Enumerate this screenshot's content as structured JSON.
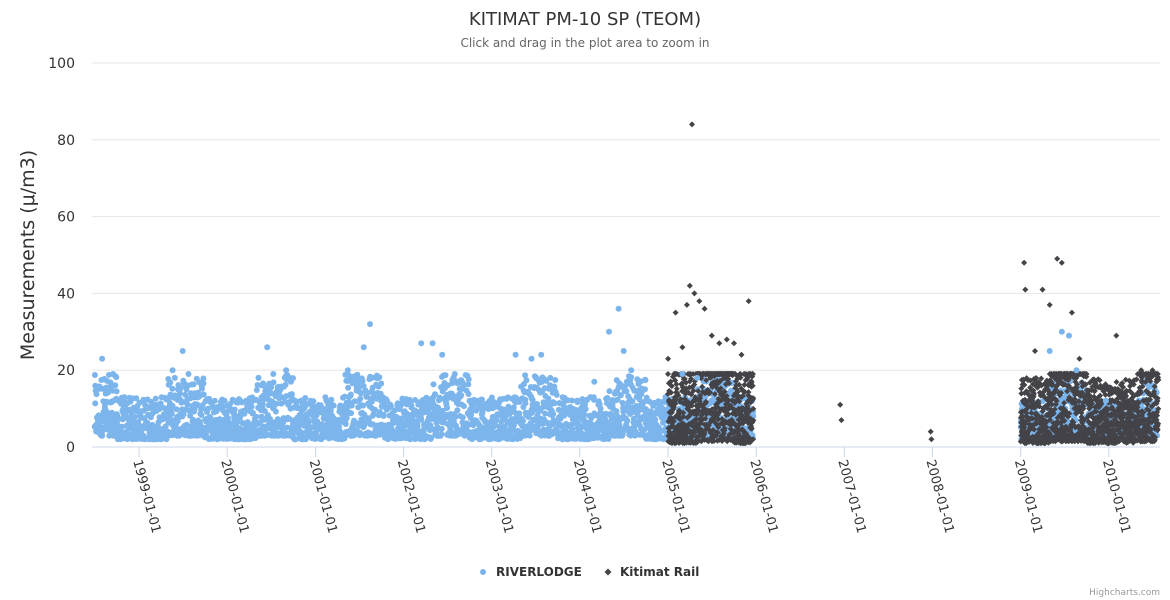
{
  "chart_data": {
    "type": "scatter",
    "title": "KITIMAT PM-10 SP (TEOM)",
    "subtitle": "Click and drag in the plot area to zoom in",
    "ylabel": "Measurements (μ/m3)",
    "xlabel": "",
    "ylim": [
      0,
      100
    ],
    "yticks": [
      "0",
      "20",
      "40",
      "60",
      "80",
      "100"
    ],
    "xlim": [
      "1998-06-20",
      "2010-08-01"
    ],
    "xticks": [
      "1999-01-01",
      "2000-01-01",
      "2001-01-01",
      "2002-01-01",
      "2003-01-01",
      "2004-01-01",
      "2005-01-01",
      "2006-01-01",
      "2007-01-01",
      "2008-01-01",
      "2009-01-01",
      "2010-01-01"
    ],
    "grid": true,
    "legend_position": "bottom",
    "series": [
      {
        "name": "RIVERLODGE",
        "color": "#7cb5ec",
        "marker": "circle",
        "points": [
          [
            "1998-08-01",
            23
          ],
          [
            "1998-09-15",
            19
          ],
          [
            "1998-11-01",
            13
          ],
          [
            "1999-03-01",
            11
          ],
          [
            "1999-05-20",
            20
          ],
          [
            "1999-07-01",
            25
          ],
          [
            "1999-07-25",
            19
          ],
          [
            "1999-08-20",
            14
          ],
          [
            "1999-10-15",
            10
          ],
          [
            "2000-02-01",
            12
          ],
          [
            "2000-05-10",
            18
          ],
          [
            "2000-06-15",
            26
          ],
          [
            "2000-07-10",
            19
          ],
          [
            "2000-09-01",
            20
          ],
          [
            "2000-11-15",
            10
          ],
          [
            "2001-03-01",
            12
          ],
          [
            "2001-05-15",
            20
          ],
          [
            "2001-07-20",
            26
          ],
          [
            "2001-08-15",
            32
          ],
          [
            "2001-09-10",
            18
          ],
          [
            "2002-03-15",
            27
          ],
          [
            "2002-05-01",
            27
          ],
          [
            "2002-06-10",
            24
          ],
          [
            "2002-08-01",
            19
          ],
          [
            "2002-10-01",
            12
          ],
          [
            "2003-04-10",
            24
          ],
          [
            "2003-06-15",
            23
          ],
          [
            "2003-07-25",
            24
          ],
          [
            "2003-09-01",
            18
          ],
          [
            "2003-11-01",
            12
          ],
          [
            "2004-03-01",
            17
          ],
          [
            "2004-05-01",
            30
          ],
          [
            "2004-06-10",
            36
          ],
          [
            "2004-07-01",
            25
          ],
          [
            "2004-08-01",
            20
          ],
          [
            "2004-10-01",
            12
          ],
          [
            "2005-03-01",
            19
          ],
          [
            "2005-05-01",
            18
          ],
          [
            "2009-05-01",
            25
          ],
          [
            "2009-06-20",
            30
          ],
          [
            "2009-07-20",
            29
          ],
          [
            "2009-08-20",
            20
          ],
          [
            "2009-12-20",
            12
          ]
        ]
      },
      {
        "name": "Kitimat Rail",
        "color": "#434348",
        "marker": "diamond",
        "points": [
          [
            "2005-01-01",
            23
          ],
          [
            "2005-02-01",
            35
          ],
          [
            "2005-03-01",
            26
          ],
          [
            "2005-03-20",
            37
          ],
          [
            "2005-04-01",
            42
          ],
          [
            "2005-04-10",
            84
          ],
          [
            "2005-04-20",
            40
          ],
          [
            "2005-05-10",
            38
          ],
          [
            "2005-06-01",
            36
          ],
          [
            "2005-07-01",
            29
          ],
          [
            "2005-08-01",
            27
          ],
          [
            "2005-09-01",
            28
          ],
          [
            "2005-10-01",
            27
          ],
          [
            "2005-11-01",
            24
          ],
          [
            "2005-12-01",
            38
          ],
          [
            "2006-12-15",
            11
          ],
          [
            "2006-12-20",
            7
          ],
          [
            "2007-12-25",
            4
          ],
          [
            "2007-12-28",
            2
          ],
          [
            "2009-01-15",
            48
          ],
          [
            "2009-01-20",
            41
          ],
          [
            "2009-03-01",
            25
          ],
          [
            "2009-04-01",
            41
          ],
          [
            "2009-05-01",
            37
          ],
          [
            "2009-06-01",
            49
          ],
          [
            "2009-06-20",
            48
          ],
          [
            "2009-08-01",
            35
          ],
          [
            "2009-09-01",
            23
          ],
          [
            "2010-02-01",
            29
          ],
          [
            "2010-05-15",
            20
          ],
          [
            "2010-07-01",
            20
          ]
        ]
      }
    ],
    "credits": "Highcharts.com"
  }
}
